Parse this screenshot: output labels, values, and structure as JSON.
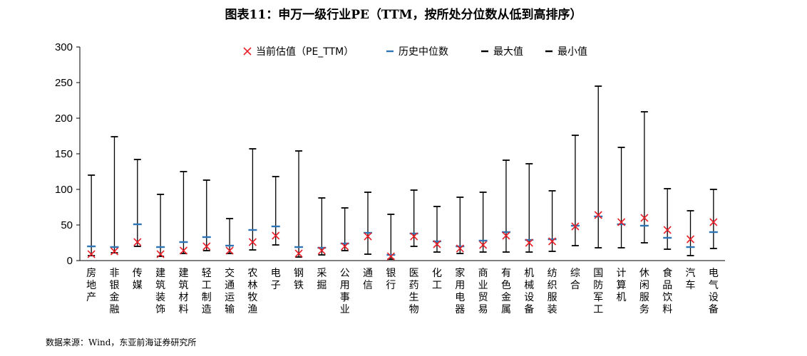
{
  "page": {
    "title": "图表11：申万一级行业PE（TTM，按所处分位数从低到高排序）",
    "source": "数据来源：Wind，东亚前海证券研究所"
  },
  "colors": {
    "current": "#e8212a",
    "median": "#2e75b6",
    "range": "#000000"
  },
  "chart_data": {
    "type": "scatter",
    "title": "图表11：申万一级行业PE（TTM，按所处分位数从低到高排序）",
    "ylim": [
      0,
      300
    ],
    "yticks": [
      0,
      50,
      100,
      150,
      200,
      250,
      300
    ],
    "grid": false,
    "legend_position": "top",
    "legend": [
      "当前估值（PE_TTM）",
      "历史中位数",
      "最大值",
      "最小值"
    ],
    "categories": [
      "房地产",
      "非银金融",
      "传媒",
      "建筑装饰",
      "建筑材料",
      "轻工制造",
      "交通运输",
      "农林牧渔",
      "电子",
      "钢铁",
      "采掘",
      "公用事业",
      "通信",
      "银行",
      "医药生物",
      "化工",
      "家用电器",
      "商业贸易",
      "有色金属",
      "机械设备",
      "纺织服装",
      "综合",
      "国防军工",
      "计算机",
      "休闲服务",
      "食品饮料",
      "汽车",
      "电气设备"
    ],
    "series": [
      {
        "name": "当前估值（PE_TTM）",
        "values": [
          9,
          13,
          26,
          9,
          14,
          20,
          14,
          26,
          35,
          10,
          14,
          20,
          34,
          6,
          34,
          23,
          17,
          22,
          35,
          25,
          27,
          48,
          64,
          54,
          60,
          43,
          30,
          54
        ]
      },
      {
        "name": "历史中位数",
        "values": [
          20,
          19,
          51,
          19,
          26,
          33,
          21,
          43,
          48,
          19,
          18,
          24,
          39,
          8,
          38,
          27,
          20,
          28,
          40,
          29,
          30,
          49,
          62,
          51,
          49,
          32,
          19,
          40
        ]
      },
      {
        "name": "最大值",
        "values": [
          120,
          174,
          142,
          93,
          125,
          113,
          59,
          157,
          118,
          154,
          88,
          74,
          96,
          65,
          99,
          76,
          89,
          96,
          141,
          136,
          98,
          176,
          245,
          159,
          209,
          101,
          70,
          100
        ]
      },
      {
        "name": "最小值",
        "values": [
          7,
          11,
          20,
          6,
          10,
          14,
          10,
          15,
          22,
          5,
          8,
          14,
          9,
          2,
          20,
          12,
          10,
          12,
          12,
          12,
          13,
          21,
          18,
          18,
          25,
          16,
          7,
          17
        ]
      }
    ]
  }
}
